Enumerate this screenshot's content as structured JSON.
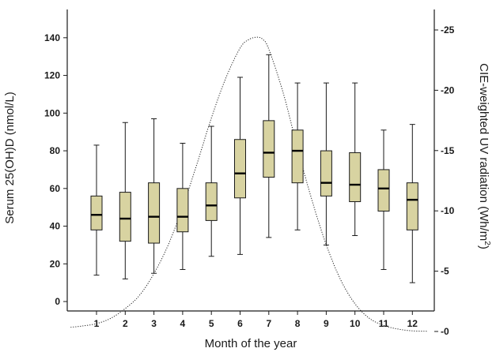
{
  "chart_data": {
    "type": "box",
    "xlabel": "Month of the year",
    "ylabel": "Serum 25(OH)D (nmol/L)",
    "y2label_main": "CIE-weighted UV radiation (Wh/m",
    "y2label_sup": "2",
    "y2label_end": ")",
    "categories": [
      "1",
      "2",
      "3",
      "4",
      "5",
      "6",
      "7",
      "8",
      "9",
      "10",
      "11",
      "12"
    ],
    "ylim": [
      -5,
      155
    ],
    "yticks": [
      0,
      20,
      40,
      60,
      80,
      100,
      120,
      140
    ],
    "y2lim": [
      -1.7,
      -26.7
    ],
    "y2ticks": [
      0,
      -5,
      -10,
      -15,
      -20,
      -25
    ],
    "y2tick_labels": [
      "-0",
      "-5",
      "-10",
      "-15",
      "-20",
      "-25"
    ],
    "box_color": "#d8d3a1",
    "boxes": [
      {
        "month": "1",
        "min": 14,
        "q1": 38,
        "median": 46,
        "q3": 56,
        "max": 83
      },
      {
        "month": "2",
        "min": 12,
        "q1": 32,
        "median": 44,
        "q3": 58,
        "max": 95
      },
      {
        "month": "3",
        "min": 15,
        "q1": 31,
        "median": 45,
        "q3": 63,
        "max": 97
      },
      {
        "month": "4",
        "min": 17,
        "q1": 37,
        "median": 45,
        "q3": 60,
        "max": 84
      },
      {
        "month": "5",
        "min": 24,
        "q1": 43,
        "median": 51,
        "q3": 63,
        "max": 93
      },
      {
        "month": "6",
        "min": 25,
        "q1": 55,
        "median": 68,
        "q3": 86,
        "max": 119
      },
      {
        "month": "7",
        "min": 34,
        "q1": 66,
        "median": 79,
        "q3": 96,
        "max": 131
      },
      {
        "month": "8",
        "min": 38,
        "q1": 63,
        "median": 80,
        "q3": 91,
        "max": 116
      },
      {
        "month": "9",
        "min": 30,
        "q1": 56,
        "median": 63,
        "q3": 80,
        "max": 116
      },
      {
        "month": "10",
        "min": 35,
        "q1": 53,
        "median": 62,
        "q3": 79,
        "max": 116
      },
      {
        "month": "11",
        "min": 17,
        "q1": 48,
        "median": 60,
        "q3": 70,
        "max": 91
      },
      {
        "month": "12",
        "min": 10,
        "q1": 38,
        "median": 54,
        "q3": 63,
        "max": 94
      }
    ],
    "uv_curve": {
      "style": "dotted",
      "x": [
        0.1,
        0.5,
        1,
        1.5,
        2,
        2.5,
        3,
        3.5,
        4,
        4.5,
        5,
        5.5,
        6,
        6.3,
        6.6,
        6.8,
        7,
        7.5,
        8,
        8.5,
        9,
        9.5,
        10,
        10.5,
        11,
        11.5,
        12,
        12.5
      ],
      "y": [
        -0.35,
        -0.45,
        -0.65,
        -1.1,
        -1.9,
        -3.0,
        -4.8,
        -7.2,
        -10.3,
        -13.9,
        -17.7,
        -21.0,
        -23.5,
        -24.2,
        -24.4,
        -24.2,
        -23.4,
        -19.8,
        -15.2,
        -10.9,
        -7.2,
        -4.3,
        -2.3,
        -1.1,
        -0.5,
        -0.2,
        -0.05,
        -0.02
      ]
    }
  }
}
